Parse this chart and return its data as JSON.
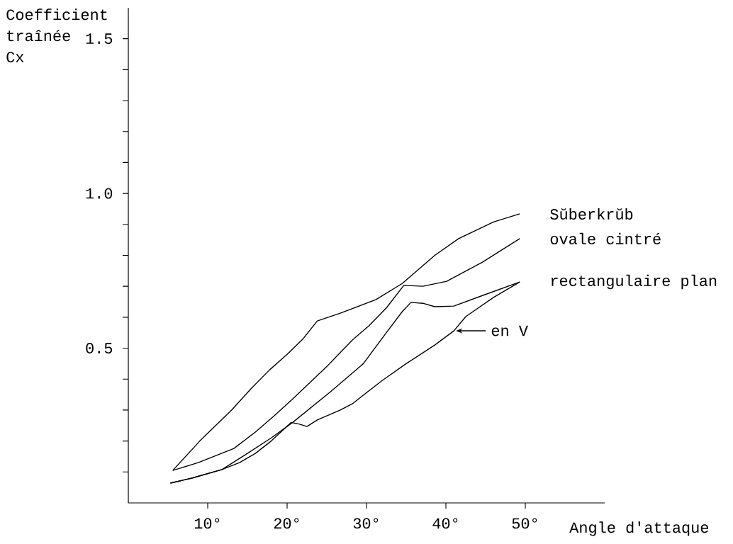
{
  "chart_data": {
    "type": "line",
    "ylabel": "Coefficient traînée Cx",
    "xlabel": "Angle d'attaque",
    "xlim": [
      0,
      60
    ],
    "ylim": [
      0,
      1.6
    ],
    "xticks": [
      {
        "value": 10,
        "label": "10°"
      },
      {
        "value": 20,
        "label": "20°"
      },
      {
        "value": 30,
        "label": "30°"
      },
      {
        "value": 40,
        "label": "40°"
      },
      {
        "value": 50,
        "label": "50°"
      }
    ],
    "yticks": [
      {
        "value": 0.1,
        "label": null
      },
      {
        "value": 0.2,
        "label": null
      },
      {
        "value": 0.3,
        "label": null
      },
      {
        "value": 0.4,
        "label": null
      },
      {
        "value": 0.5,
        "label": "0.5"
      },
      {
        "value": 0.6,
        "label": null
      },
      {
        "value": 0.7,
        "label": null
      },
      {
        "value": 0.8,
        "label": null
      },
      {
        "value": 0.9,
        "label": null
      },
      {
        "value": 1.0,
        "label": "1.0"
      },
      {
        "value": 1.1,
        "label": null
      },
      {
        "value": 1.2,
        "label": null
      },
      {
        "value": 1.3,
        "label": null
      },
      {
        "value": 1.4,
        "label": null
      },
      {
        "value": 1.5,
        "label": "1.5"
      }
    ],
    "marker": "none",
    "line_style": "solid",
    "series": [
      {
        "name": "Sŭberkrŭb",
        "color": "#000000",
        "x": [
          5.6,
          9,
          13,
          15.5,
          17.8,
          20,
          22,
          23.8,
          26.7,
          31.2,
          34.5,
          38.6,
          41.6,
          46,
          49.3
        ],
        "values": [
          0.105,
          0.2,
          0.3,
          0.37,
          0.43,
          0.48,
          0.53,
          0.588,
          0.613,
          0.657,
          0.709,
          0.8,
          0.854,
          0.908,
          0.934
        ]
      },
      {
        "name": "ovale cintré",
        "color": "#000000",
        "x": [
          5.6,
          8.8,
          13.3,
          16,
          18.4,
          20.7,
          25.2,
          28.2,
          30.3,
          32.5,
          34.7,
          37.1,
          40.1,
          44.6,
          49.3
        ],
        "values": [
          0.105,
          0.13,
          0.176,
          0.229,
          0.282,
          0.336,
          0.446,
          0.526,
          0.572,
          0.63,
          0.703,
          0.7,
          0.716,
          0.778,
          0.854
        ]
      },
      {
        "name": "rectangulaire plan",
        "color": "#000000",
        "x": [
          5.3,
          8,
          11.8,
          15,
          18,
          20.7,
          25.5,
          29.6,
          32.5,
          34.5,
          35.6,
          37.1,
          38.6,
          41,
          44.6,
          49.3
        ],
        "values": [
          0.064,
          0.08,
          0.108,
          0.16,
          0.21,
          0.26,
          0.36,
          0.45,
          0.55,
          0.618,
          0.648,
          0.645,
          0.634,
          0.636,
          0.67,
          0.714
        ]
      },
      {
        "name": "en V",
        "color": "#000000",
        "x": [
          5.3,
          8,
          11.8,
          14,
          16,
          18,
          20.5,
          21.5,
          22.5,
          23.8,
          26.7,
          28.2,
          32,
          35,
          38.6,
          41,
          42.5,
          46,
          49.3
        ],
        "values": [
          0.064,
          0.08,
          0.108,
          0.13,
          0.16,
          0.2,
          0.26,
          0.255,
          0.247,
          0.268,
          0.3,
          0.32,
          0.396,
          0.45,
          0.51,
          0.556,
          0.602,
          0.664,
          0.714
        ]
      }
    ]
  }
}
